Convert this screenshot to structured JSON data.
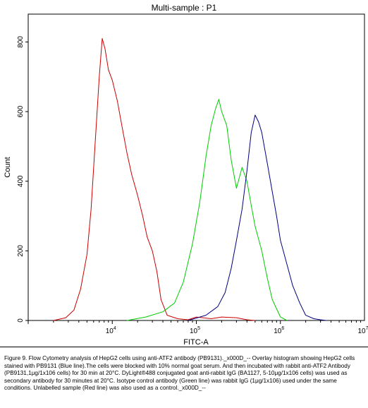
{
  "chart_data": {
    "type": "line",
    "title": "Multi-sample : P1",
    "xlabel": "FITC-A",
    "ylabel": "Count",
    "x_scale": "log",
    "xlim": [
      1000,
      10000000
    ],
    "ylim": [
      0,
      880
    ],
    "x_ticks": [
      {
        "value": 10000,
        "base": "10",
        "exp": "4"
      },
      {
        "value": 100000,
        "base": "10",
        "exp": "5"
      },
      {
        "value": 1000000,
        "base": "10",
        "exp": "6"
      },
      {
        "value": 10000000,
        "base": "10",
        "exp": "7"
      }
    ],
    "y_ticks": [
      0,
      200,
      400,
      600,
      800
    ],
    "grid": false,
    "series": [
      {
        "color": "#cc0000",
        "x": [
          2000,
          2800,
          3500,
          4200,
          5000,
          5600,
          6300,
          7000,
          7600,
          8200,
          9000,
          10000,
          11500,
          13000,
          15000,
          17000,
          20000,
          23000,
          26000,
          30000,
          34000,
          38000,
          45000,
          60000,
          80000,
          100000,
          150000,
          200000,
          300000,
          400000,
          500000
        ],
        "y": [
          0,
          8,
          30,
          90,
          190,
          320,
          520,
          700,
          810,
          780,
          720,
          690,
          630,
          560,
          480,
          420,
          360,
          300,
          240,
          200,
          140,
          60,
          15,
          5,
          2,
          10,
          5,
          10,
          8,
          2,
          0
        ]
      },
      {
        "color": "#00cc00",
        "x": [
          15000,
          25000,
          40000,
          55000,
          70000,
          90000,
          110000,
          130000,
          150000,
          170000,
          185000,
          200000,
          230000,
          260000,
          300000,
          350000,
          400000,
          450000,
          500000,
          600000,
          700000,
          800000,
          1000000,
          1200000
        ],
        "y": [
          0,
          10,
          25,
          50,
          110,
          220,
          340,
          470,
          560,
          610,
          635,
          600,
          560,
          460,
          380,
          440,
          400,
          330,
          270,
          200,
          120,
          60,
          10,
          0
        ]
      },
      {
        "color": "#000080",
        "x": [
          80000,
          130000,
          180000,
          220000,
          260000,
          300000,
          350000,
          400000,
          450000,
          500000,
          550000,
          600000,
          700000,
          800000,
          900000,
          1000000,
          1200000,
          1400000,
          1700000,
          2000000,
          2500000,
          3000000,
          3500000
        ],
        "y": [
          0,
          15,
          40,
          80,
          150,
          230,
          320,
          430,
          540,
          590,
          570,
          540,
          450,
          370,
          300,
          230,
          160,
          100,
          50,
          15,
          5,
          2,
          0
        ]
      }
    ]
  },
  "caption": "Figure 9. Flow Cytometry analysis of HepG2 cells using anti-ATF2 antibody (PB9131)._x000D_-- Overlay histogram showing HepG2 cells stained with PB9131 (Blue line).The cells were blocked with 10% normal goat serum. And then incubated with rabbit anti-ATF2 Antibody (PB9131,1μg/1x106 cells) for 30 min at 20°C. DyLight®488 conjugated goat anti-rabbit IgG (BA1127, 5-10μg/1x106 cells) was used as secondary antibody for 30 minutes at 20°C. Isotype control antibody (Green line) was rabbit IgG (1μg/1x106) used under the same conditions. Unlabelled sample (Red line) was also used as a control._x000D_--"
}
